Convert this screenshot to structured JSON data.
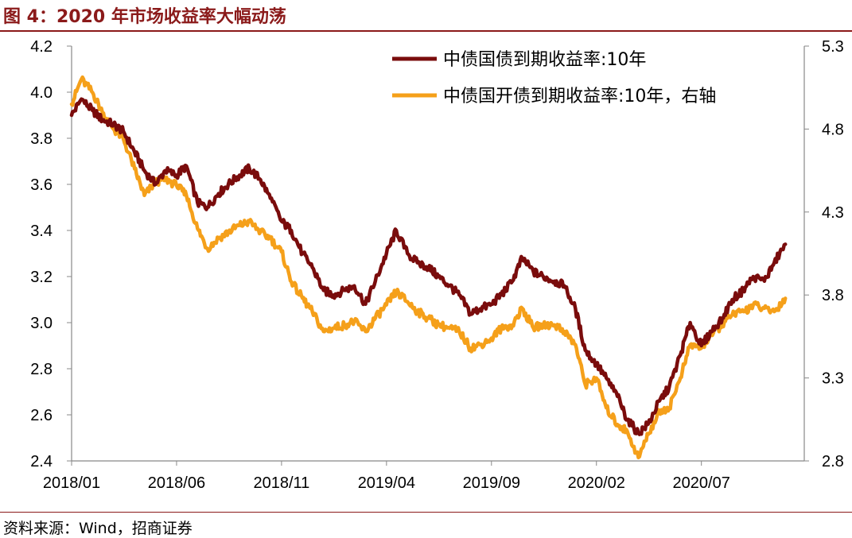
{
  "figure_title": "图 4：2020 年市场收益率大幅动荡",
  "source": "资料来源：Wind，招商证券",
  "colors": {
    "title": "#8B1A1A",
    "series_gov": "#7A0C0C",
    "series_cdb": "#F5A01A",
    "axis": "#888888"
  },
  "chart_data": {
    "type": "line",
    "title": "",
    "grid": false,
    "legend_position": "top-right",
    "x_ticks": [
      "2018/01",
      "2018/06",
      "2018/11",
      "2019/04",
      "2019/09",
      "2020/02",
      "2020/07"
    ],
    "x_range": [
      "2018/01",
      "2020/11"
    ],
    "y_left": {
      "range": [
        2.4,
        4.2
      ],
      "ticks": [
        "2.4",
        "2.6",
        "2.8",
        "3.0",
        "3.2",
        "3.4",
        "3.6",
        "3.8",
        "4.0",
        "4.2"
      ]
    },
    "y_right": {
      "range": [
        2.8,
        5.3
      ],
      "ticks": [
        "2.8",
        "3.3",
        "3.8",
        "4.3",
        "4.8",
        "5.3"
      ]
    },
    "series": [
      {
        "name": "中债国债到期收益率:10年",
        "axis": "left",
        "points": [
          [
            "2018/01",
            3.9
          ],
          [
            "2018/01/15",
            3.97
          ],
          [
            "2018/02",
            3.92
          ],
          [
            "2018/02/15",
            3.88
          ],
          [
            "2018/03",
            3.86
          ],
          [
            "2018/03/15",
            3.83
          ],
          [
            "2018/04",
            3.74
          ],
          [
            "2018/04/15",
            3.66
          ],
          [
            "2018/05",
            3.6
          ],
          [
            "2018/05/15",
            3.66
          ],
          [
            "2018/06",
            3.64
          ],
          [
            "2018/06/15",
            3.68
          ],
          [
            "2018/07",
            3.52
          ],
          [
            "2018/07/15",
            3.5
          ],
          [
            "2018/08",
            3.56
          ],
          [
            "2018/08/15",
            3.6
          ],
          [
            "2018/09",
            3.64
          ],
          [
            "2018/09/15",
            3.67
          ],
          [
            "2018/10",
            3.62
          ],
          [
            "2018/10/15",
            3.54
          ],
          [
            "2018/11",
            3.44
          ],
          [
            "2018/11/15",
            3.4
          ],
          [
            "2018/12",
            3.3
          ],
          [
            "2018/12/15",
            3.24
          ],
          [
            "2019/01",
            3.14
          ],
          [
            "2019/01/15",
            3.12
          ],
          [
            "2019/02",
            3.14
          ],
          [
            "2019/02/15",
            3.16
          ],
          [
            "2019/03",
            3.08
          ],
          [
            "2019/03/15",
            3.18
          ],
          [
            "2019/04",
            3.3
          ],
          [
            "2019/04/15",
            3.4
          ],
          [
            "2019/05",
            3.3
          ],
          [
            "2019/05/15",
            3.26
          ],
          [
            "2019/06",
            3.24
          ],
          [
            "2019/06/15",
            3.2
          ],
          [
            "2019/07",
            3.16
          ],
          [
            "2019/07/15",
            3.12
          ],
          [
            "2019/08",
            3.04
          ],
          [
            "2019/08/15",
            3.06
          ],
          [
            "2019/09",
            3.08
          ],
          [
            "2019/09/15",
            3.12
          ],
          [
            "2019/10",
            3.18
          ],
          [
            "2019/10/15",
            3.28
          ],
          [
            "2019/11",
            3.22
          ],
          [
            "2019/11/15",
            3.2
          ],
          [
            "2019/12",
            3.18
          ],
          [
            "2019/12/15",
            3.16
          ],
          [
            "2020/01",
            3.06
          ],
          [
            "2020/01/15",
            2.88
          ],
          [
            "2020/02",
            2.82
          ],
          [
            "2020/02/15",
            2.76
          ],
          [
            "2020/03",
            2.68
          ],
          [
            "2020/03/15",
            2.58
          ],
          [
            "2020/04",
            2.52
          ],
          [
            "2020/04/15",
            2.56
          ],
          [
            "2020/05",
            2.66
          ],
          [
            "2020/05/15",
            2.72
          ],
          [
            "2020/06",
            2.86
          ],
          [
            "2020/06/15",
            3.0
          ],
          [
            "2020/07",
            2.9
          ],
          [
            "2020/07/15",
            2.96
          ],
          [
            "2020/08",
            3.02
          ],
          [
            "2020/08/15",
            3.1
          ],
          [
            "2020/09",
            3.14
          ],
          [
            "2020/09/15",
            3.2
          ],
          [
            "2020/10",
            3.18
          ],
          [
            "2020/10/15",
            3.26
          ],
          [
            "2020/11",
            3.34
          ]
        ]
      },
      {
        "name": "中债国开债到期收益率:10年，右轴",
        "axis": "right",
        "points": [
          [
            "2018/01",
            4.95
          ],
          [
            "2018/01/15",
            5.1
          ],
          [
            "2018/02",
            5.02
          ],
          [
            "2018/02/15",
            4.9
          ],
          [
            "2018/03",
            4.8
          ],
          [
            "2018/03/15",
            4.74
          ],
          [
            "2018/04",
            4.56
          ],
          [
            "2018/04/15",
            4.4
          ],
          [
            "2018/05",
            4.48
          ],
          [
            "2018/05/15",
            4.5
          ],
          [
            "2018/06",
            4.46
          ],
          [
            "2018/06/15",
            4.4
          ],
          [
            "2018/07",
            4.2
          ],
          [
            "2018/07/15",
            4.08
          ],
          [
            "2018/08",
            4.14
          ],
          [
            "2018/08/15",
            4.18
          ],
          [
            "2018/09",
            4.22
          ],
          [
            "2018/09/15",
            4.24
          ],
          [
            "2018/10",
            4.18
          ],
          [
            "2018/10/15",
            4.14
          ],
          [
            "2018/11",
            4.06
          ],
          [
            "2018/11/15",
            3.88
          ],
          [
            "2018/12",
            3.78
          ],
          [
            "2018/12/15",
            3.7
          ],
          [
            "2019/01",
            3.58
          ],
          [
            "2019/01/15",
            3.6
          ],
          [
            "2019/02",
            3.62
          ],
          [
            "2019/02/15",
            3.64
          ],
          [
            "2019/03",
            3.58
          ],
          [
            "2019/03/15",
            3.66
          ],
          [
            "2019/04",
            3.74
          ],
          [
            "2019/04/15",
            3.82
          ],
          [
            "2019/05",
            3.76
          ],
          [
            "2019/05/15",
            3.7
          ],
          [
            "2019/06",
            3.66
          ],
          [
            "2019/06/15",
            3.62
          ],
          [
            "2019/07",
            3.6
          ],
          [
            "2019/07/15",
            3.58
          ],
          [
            "2019/08",
            3.48
          ],
          [
            "2019/08/15",
            3.5
          ],
          [
            "2019/09",
            3.54
          ],
          [
            "2019/09/15",
            3.6
          ],
          [
            "2019/10",
            3.62
          ],
          [
            "2019/10/15",
            3.72
          ],
          [
            "2019/11",
            3.6
          ],
          [
            "2019/11/15",
            3.62
          ],
          [
            "2019/12",
            3.62
          ],
          [
            "2019/12/15",
            3.58
          ],
          [
            "2020/01",
            3.5
          ],
          [
            "2020/01/15",
            3.26
          ],
          [
            "2020/02",
            3.3
          ],
          [
            "2020/02/15",
            3.12
          ],
          [
            "2020/03",
            3.02
          ],
          [
            "2020/03/15",
            2.98
          ],
          [
            "2020/04",
            2.82
          ],
          [
            "2020/04/15",
            2.96
          ],
          [
            "2020/05",
            3.1
          ],
          [
            "2020/05/15",
            3.12
          ],
          [
            "2020/06",
            3.3
          ],
          [
            "2020/06/15",
            3.5
          ],
          [
            "2020/07",
            3.48
          ],
          [
            "2020/07/15",
            3.56
          ],
          [
            "2020/08",
            3.62
          ],
          [
            "2020/08/15",
            3.68
          ],
          [
            "2020/09",
            3.7
          ],
          [
            "2020/09/15",
            3.74
          ],
          [
            "2020/10",
            3.72
          ],
          [
            "2020/10/15",
            3.7
          ],
          [
            "2020/11",
            3.78
          ]
        ]
      }
    ]
  }
}
